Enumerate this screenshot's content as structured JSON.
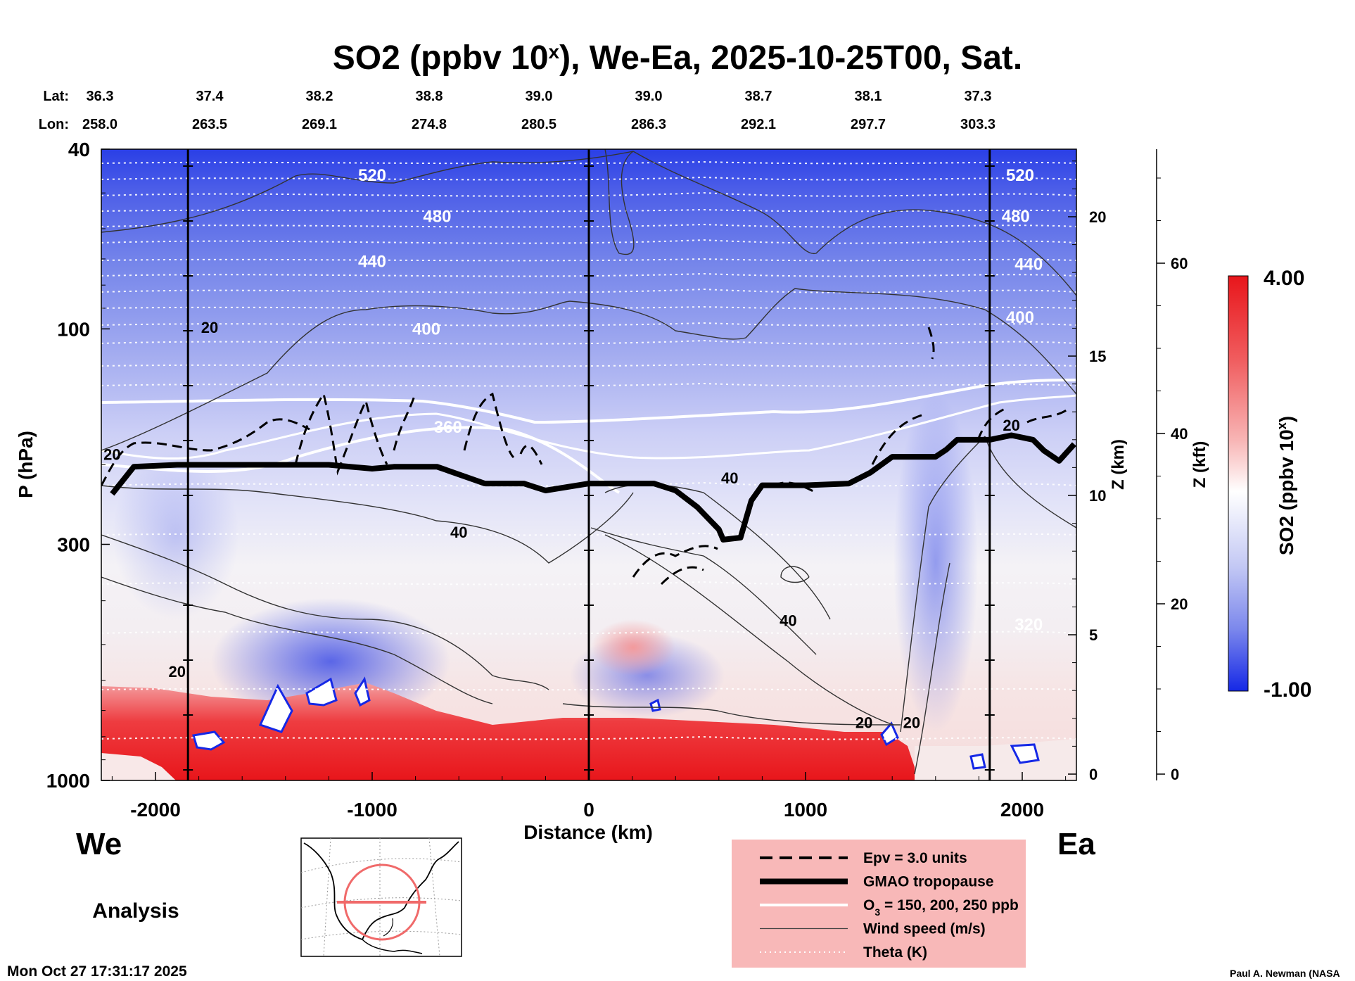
{
  "chart_data": {
    "type": "heatmap",
    "title": "SO2 (ppbv 10",
    "title_superscript": "x",
    "title_suffix": "), We-Ea, 2025-10-25T00, Sat.",
    "xlabel": "Distance (km)",
    "ylabel": "P (hPa)",
    "y2label": "Z (km)",
    "y3label": "Z (kft)",
    "colorbar_label": "SO2 (ppbv 10",
    "colorbar_label_sup": "x",
    "colorbar_label_suffix": ")",
    "colorbar_max_label": "4.00",
    "colorbar_min_label": "-1.00",
    "colorbar_range": [
      -1.0,
      4.0
    ],
    "x_range": [
      -2250,
      2250
    ],
    "x_ticks": [
      -2000,
      -1000,
      0,
      1000,
      2000
    ],
    "x_tick_labels": [
      "-2000",
      "-1000",
      "0",
      "1000",
      "2000"
    ],
    "p_range": [
      40,
      1000
    ],
    "p_ticks": [
      40,
      100,
      300,
      1000
    ],
    "p_tick_labels": [
      "40",
      "100",
      "300",
      "1000"
    ],
    "z_km_ticks": [
      0,
      5,
      10,
      15,
      20
    ],
    "z_km_tick_labels": [
      "0",
      "5",
      "10",
      "15",
      "20"
    ],
    "z_kft_ticks": [
      0,
      20,
      40,
      60
    ],
    "z_kft_tick_labels": [
      "0",
      "20",
      "40",
      "60"
    ],
    "vertical_markers_km": [
      -1850,
      0,
      1850
    ],
    "lat_header": "Lat:",
    "lon_header": "Lon:",
    "lat_values": [
      "36.3",
      "37.4",
      "38.2",
      "38.8",
      "39.0",
      "39.0",
      "38.7",
      "38.1",
      "37.3"
    ],
    "lon_values": [
      "258.0",
      "263.5",
      "269.1",
      "274.8",
      "280.5",
      "286.3",
      "292.1",
      "297.7",
      "303.3"
    ],
    "left_end_label": "We",
    "right_end_label": "Ea",
    "mode_label": "Analysis",
    "timestamp": "Mon Oct 27 17:31:17 2025",
    "credit": "Paul A. Newman (NASA",
    "theta_labels": [
      {
        "text": "520",
        "x_km": -1000,
        "p": 47
      },
      {
        "text": "480",
        "x_km": -700,
        "p": 58
      },
      {
        "text": "440",
        "x_km": -1000,
        "p": 73
      },
      {
        "text": "400",
        "x_km": -750,
        "p": 103
      },
      {
        "text": "360",
        "x_km": -650,
        "p": 170
      },
      {
        "text": "520",
        "x_km": 1990,
        "p": 47
      },
      {
        "text": "480",
        "x_km": 1970,
        "p": 58
      },
      {
        "text": "440",
        "x_km": 2030,
        "p": 74
      },
      {
        "text": "400",
        "x_km": 1990,
        "p": 97
      },
      {
        "text": "320",
        "x_km": 2030,
        "p": 465
      }
    ],
    "wind_labels": [
      {
        "text": "20",
        "x_km": -1750,
        "p": 102
      },
      {
        "text": "20",
        "x_km": -1900,
        "p": 590
      },
      {
        "text": "20",
        "x_km": -2200,
        "p": 195
      },
      {
        "text": "40",
        "x_km": -600,
        "p": 290
      },
      {
        "text": "40",
        "x_km": 650,
        "p": 220
      },
      {
        "text": "40",
        "x_km": 920,
        "p": 455
      },
      {
        "text": "20",
        "x_km": 1270,
        "p": 765
      },
      {
        "text": "20",
        "x_km": 1490,
        "p": 765
      },
      {
        "text": "20",
        "x_km": 1950,
        "p": 168
      }
    ],
    "tropopause_x_km": [
      -2200,
      -2100,
      -1900,
      -1600,
      -1200,
      -1000,
      -900,
      -700,
      -480,
      -300,
      -200,
      0,
      300,
      400,
      500,
      600,
      620,
      700,
      750,
      800,
      1000,
      1200,
      1300,
      1400,
      1600,
      1650,
      1700,
      1750,
      1850,
      1950,
      2050,
      2100,
      2170,
      2240
    ],
    "tropopause_p": [
      232,
      202,
      200,
      200,
      200,
      204,
      202,
      202,
      220,
      220,
      228,
      220,
      220,
      228,
      248,
      278,
      293,
      290,
      240,
      222,
      222,
      220,
      208,
      192,
      192,
      185,
      176,
      176,
      176,
      172,
      176,
      186,
      196,
      180
    ],
    "legend": [
      {
        "label": "Epv = 3.0 units",
        "style": "dashed"
      },
      {
        "label": "GMAO tropopause",
        "style": "thick"
      },
      {
        "label": "O",
        "sub": "3",
        "suffix": " = 150, 200, 250 ppb",
        "style": "white"
      },
      {
        "label": "Wind speed (m/s)",
        "style": "thin"
      },
      {
        "label": "Theta (K)",
        "style": "dotted"
      }
    ],
    "colors": {
      "high": "#e8161b",
      "low": "#1528e6",
      "mid": "#ffffff",
      "legend_bg": "#f8b8b8"
    }
  }
}
